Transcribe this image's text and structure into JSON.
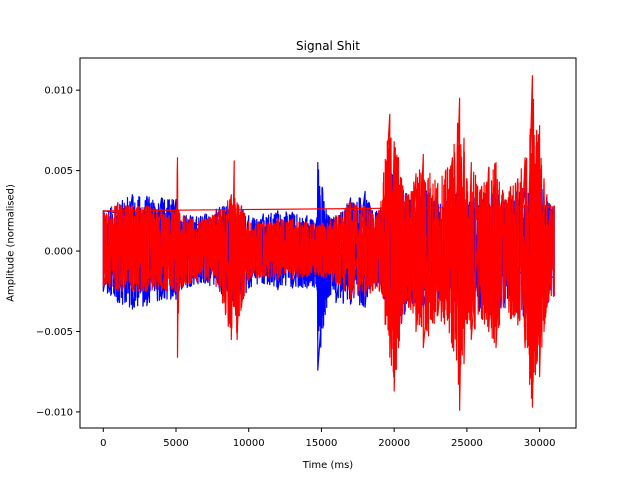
{
  "chart_data": {
    "type": "line",
    "title": "Signal Shit",
    "xlabel": "Time (ms)",
    "ylabel": "Amplitude (normalised)",
    "xlim": [
      -1600,
      32500
    ],
    "ylim": [
      -0.011,
      0.012
    ],
    "xticks": [
      0,
      5000,
      10000,
      15000,
      20000,
      25000,
      30000
    ],
    "xtick_labels": [
      "0",
      "5000",
      "10000",
      "15000",
      "20000",
      "25000",
      "30000"
    ],
    "yticks": [
      -0.01,
      -0.005,
      0.0,
      0.005,
      0.01
    ],
    "ytick_labels": [
      "−0.010",
      "−0.005",
      "0.000",
      "0.005",
      "0.010"
    ],
    "grid": false,
    "legend": "none",
    "series": [
      {
        "color": "#0000ff",
        "envelope_x": [
          0,
          1000,
          2000,
          3000,
          4000,
          5000,
          5200,
          6000,
          7000,
          8000,
          8800,
          9500,
          10000,
          11000,
          12000,
          13000,
          14000,
          14700,
          14750,
          15500,
          16000,
          17000,
          18000,
          18500,
          19000,
          19800,
          20000,
          20500,
          21000,
          22000,
          23000,
          24000,
          24800,
          25000,
          25500,
          26000,
          27000,
          28000,
          29000,
          29800,
          30000,
          30500,
          31000
        ],
        "upper": [
          0.0025,
          0.003,
          0.0035,
          0.0034,
          0.0033,
          0.0032,
          0.0025,
          0.0022,
          0.0023,
          0.0027,
          0.003,
          0.0028,
          0.0022,
          0.0023,
          0.0025,
          0.0024,
          0.0022,
          0.0021,
          0.0055,
          0.0022,
          0.0022,
          0.0033,
          0.0037,
          0.0025,
          0.0025,
          0.0048,
          0.0055,
          0.0045,
          0.0033,
          0.004,
          0.003,
          0.0035,
          0.0045,
          0.003,
          0.0033,
          0.0038,
          0.0035,
          0.0036,
          0.004,
          0.0036,
          0.0042,
          0.0033,
          0.0028
        ],
        "lower": [
          -0.0025,
          -0.0032,
          -0.0036,
          -0.0034,
          -0.003,
          -0.003,
          -0.0025,
          -0.0022,
          -0.002,
          -0.0025,
          -0.0034,
          -0.0032,
          -0.0023,
          -0.002,
          -0.0024,
          -0.0023,
          -0.0023,
          -0.0024,
          -0.0074,
          -0.0028,
          -0.0032,
          -0.0033,
          -0.0035,
          -0.0022,
          -0.0022,
          -0.0045,
          -0.005,
          -0.0045,
          -0.0035,
          -0.0035,
          -0.003,
          -0.0032,
          -0.004,
          -0.0032,
          -0.0033,
          -0.004,
          -0.0037,
          -0.0035,
          -0.0045,
          -0.0037,
          -0.004,
          -0.0033,
          -0.0028
        ]
      },
      {
        "color": "#ff0000",
        "envelope_x": [
          0,
          1000,
          2000,
          3000,
          4000,
          5000,
          5100,
          5200,
          6000,
          7000,
          8000,
          8800,
          9000,
          9200,
          9500,
          10000,
          11000,
          12000,
          13000,
          14000,
          15000,
          16000,
          17000,
          18000,
          19000,
          19700,
          20000,
          20300,
          20500,
          21000,
          21500,
          22000,
          23000,
          24000,
          24500,
          24800,
          25000,
          25300,
          26000,
          26500,
          27000,
          27500,
          28000,
          28500,
          29000,
          29500,
          29800,
          30000,
          30300,
          30500,
          31000
        ],
        "upper": [
          0.0025,
          0.003,
          0.0028,
          0.0028,
          0.0026,
          0.0025,
          0.0058,
          0.0025,
          0.002,
          0.002,
          0.0025,
          0.0035,
          0.0056,
          0.003,
          0.0028,
          0.0018,
          0.0018,
          0.002,
          0.002,
          0.0018,
          0.0017,
          0.0022,
          0.003,
          0.0028,
          0.0025,
          0.0085,
          0.0068,
          0.0058,
          0.0045,
          0.0035,
          0.0048,
          0.006,
          0.0042,
          0.0058,
          0.0095,
          0.007,
          0.0045,
          0.0055,
          0.004,
          0.0052,
          0.0055,
          0.0036,
          0.004,
          0.0045,
          0.0058,
          0.0109,
          0.0075,
          0.0078,
          0.0045,
          0.0035,
          0.0028
        ],
        "lower": [
          -0.0022,
          -0.0025,
          -0.0025,
          -0.0025,
          -0.0025,
          -0.0025,
          -0.0066,
          -0.0025,
          -0.002,
          -0.0018,
          -0.0025,
          -0.0055,
          -0.0034,
          -0.0055,
          -0.0035,
          -0.0018,
          -0.0016,
          -0.0018,
          -0.0017,
          -0.0016,
          -0.0016,
          -0.002,
          -0.003,
          -0.0028,
          -0.0025,
          -0.0066,
          -0.0087,
          -0.006,
          -0.0045,
          -0.0035,
          -0.005,
          -0.006,
          -0.004,
          -0.006,
          -0.0099,
          -0.007,
          -0.0045,
          -0.0055,
          -0.0042,
          -0.005,
          -0.006,
          -0.0035,
          -0.0042,
          -0.0046,
          -0.006,
          -0.0097,
          -0.007,
          -0.0078,
          -0.005,
          -0.0035,
          -0.0028
        ]
      }
    ]
  }
}
